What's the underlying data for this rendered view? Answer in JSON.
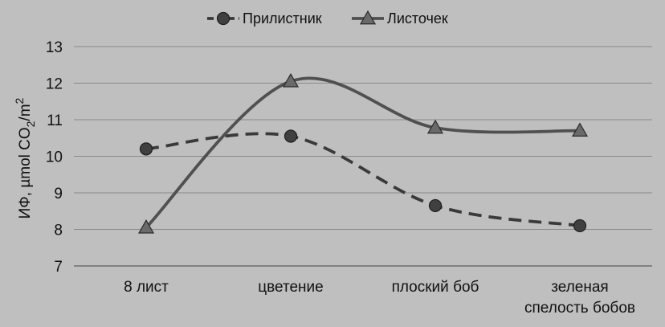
{
  "chart_data": {
    "type": "line",
    "title": "",
    "xlabel": "",
    "ylabel": "ИФ, µmol CO2/m2",
    "ylabel_parts": {
      "prefix": "ИФ, µmol CO",
      "sub": "2",
      "mid": "/m",
      "sup": "2"
    },
    "ylim": [
      7,
      13
    ],
    "yticks": [
      7,
      8,
      9,
      10,
      11,
      12,
      13
    ],
    "grid": true,
    "legend": "top",
    "categories": [
      [
        "8 лист"
      ],
      [
        "цветение"
      ],
      [
        "плоский боб"
      ],
      [
        "зеленая",
        "спелость бобов"
      ]
    ],
    "series": [
      {
        "name": "Прилистник",
        "marker": "circle",
        "line_style": "dashed",
        "color": "#3a3a3a",
        "values": [
          10.2,
          10.55,
          8.65,
          8.1
        ]
      },
      {
        "name": "Листочек",
        "marker": "triangle",
        "line_style": "solid",
        "color": "#505050",
        "values": [
          8.05,
          12.05,
          10.78,
          10.7
        ]
      }
    ]
  }
}
